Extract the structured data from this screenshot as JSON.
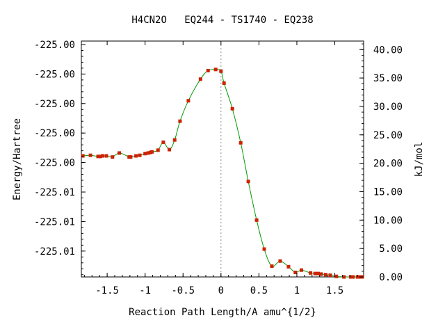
{
  "chart_data": {
    "type": "line",
    "title": "H4CN2O   EQ244 - TS1740 - EQ238",
    "xlabel": "Reaction Path Length/A amu^{1/2}",
    "ylabel": "Energy/Hartree",
    "y2label": "kJ/mol",
    "xlim": [
      -1.84,
      1.88
    ],
    "x_ticks": [
      -1.5,
      -1,
      -0.5,
      0,
      0.5,
      1,
      1.5
    ],
    "x_tick_labels": [
      "-1.5",
      "-1",
      "-0.5",
      "0",
      "0.5",
      "1",
      "1.5"
    ],
    "y_left_tick_labels": [
      "-225.00",
      "-225.00",
      "-225.00",
      "-225.00",
      "-225.00",
      "-225.01",
      "-225.01",
      "-225.01"
    ],
    "y2lim": [
      0,
      41.5
    ],
    "y2_ticks": [
      0,
      5,
      10,
      15,
      20,
      25,
      30,
      35,
      40
    ],
    "y2_tick_labels": [
      "0.00",
      "5.00",
      "10.00",
      "15.00",
      "20.00",
      "25.00",
      "30.00",
      "35.00",
      "40.00"
    ],
    "ts_marker_x": 0,
    "grid": false,
    "colors": {
      "line": "#009900",
      "points": "#cc2200",
      "marker_line": "#888888"
    },
    "series": [
      {
        "x": [
          -1.82,
          -1.72,
          -1.62,
          -1.59,
          -1.56,
          -1.51,
          -1.43,
          -1.34,
          -1.21,
          -1.19,
          -1.12,
          -1.07,
          -1.0,
          -0.96,
          -0.93,
          -0.91,
          -0.83,
          -0.76,
          -0.68,
          -0.61,
          -0.54,
          -0.43,
          -0.27,
          -0.17,
          -0.07,
          0.0,
          0.04,
          0.15,
          0.26,
          0.36,
          0.47,
          0.57,
          0.67,
          0.78,
          0.89,
          0.98,
          1.06,
          1.18,
          1.24,
          1.28,
          1.32,
          1.38,
          1.44,
          1.52,
          1.62,
          1.71,
          1.74,
          1.8,
          1.82,
          1.86
        ],
        "y": [
          21.3,
          21.4,
          21.2,
          21.2,
          21.3,
          21.3,
          21.1,
          21.8,
          21.1,
          21.1,
          21.3,
          21.4,
          21.7,
          21.8,
          21.9,
          22.0,
          22.3,
          23.7,
          22.4,
          24.1,
          27.4,
          31.0,
          34.8,
          36.3,
          36.5,
          36.2,
          34.1,
          29.6,
          23.6,
          16.8,
          10.0,
          4.9,
          1.9,
          2.8,
          1.8,
          0.8,
          1.2,
          0.7,
          0.6,
          0.6,
          0.5,
          0.4,
          0.3,
          0.1,
          0.0,
          0.0,
          0.0,
          0.0,
          0.0,
          0.0
        ]
      }
    ]
  }
}
